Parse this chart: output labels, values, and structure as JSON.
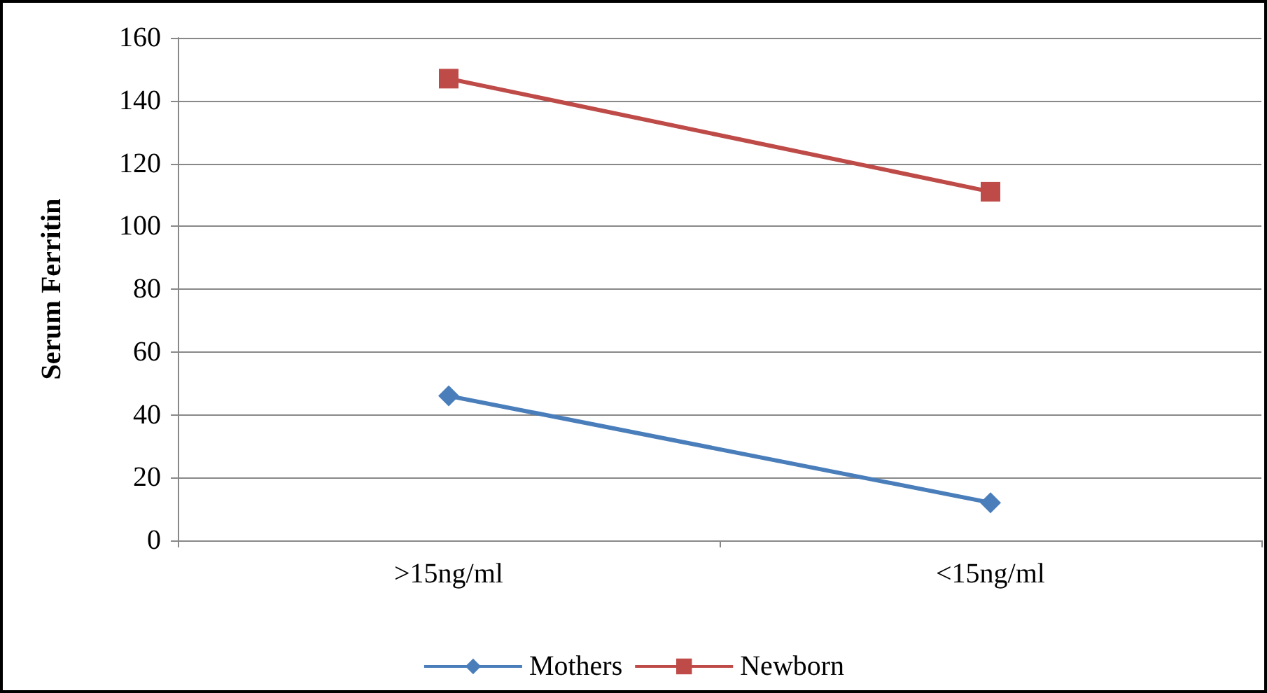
{
  "chart_data": {
    "type": "line",
    "ylabel": "Serum Ferritin",
    "categories": [
      ">15ng/ml",
      "<15ng/ml"
    ],
    "series": [
      {
        "name": "Mothers",
        "color": "#4a7ebb",
        "values": [
          46,
          12
        ],
        "marker": "diamond"
      },
      {
        "name": "Newborn",
        "color": "#be4b48",
        "values": [
          147,
          111
        ],
        "marker": "square"
      }
    ],
    "ylim": [
      0,
      160
    ],
    "yticks": [
      0,
      20,
      40,
      60,
      80,
      100,
      120,
      140,
      160
    ],
    "grid": "y",
    "legend": "bottom"
  }
}
